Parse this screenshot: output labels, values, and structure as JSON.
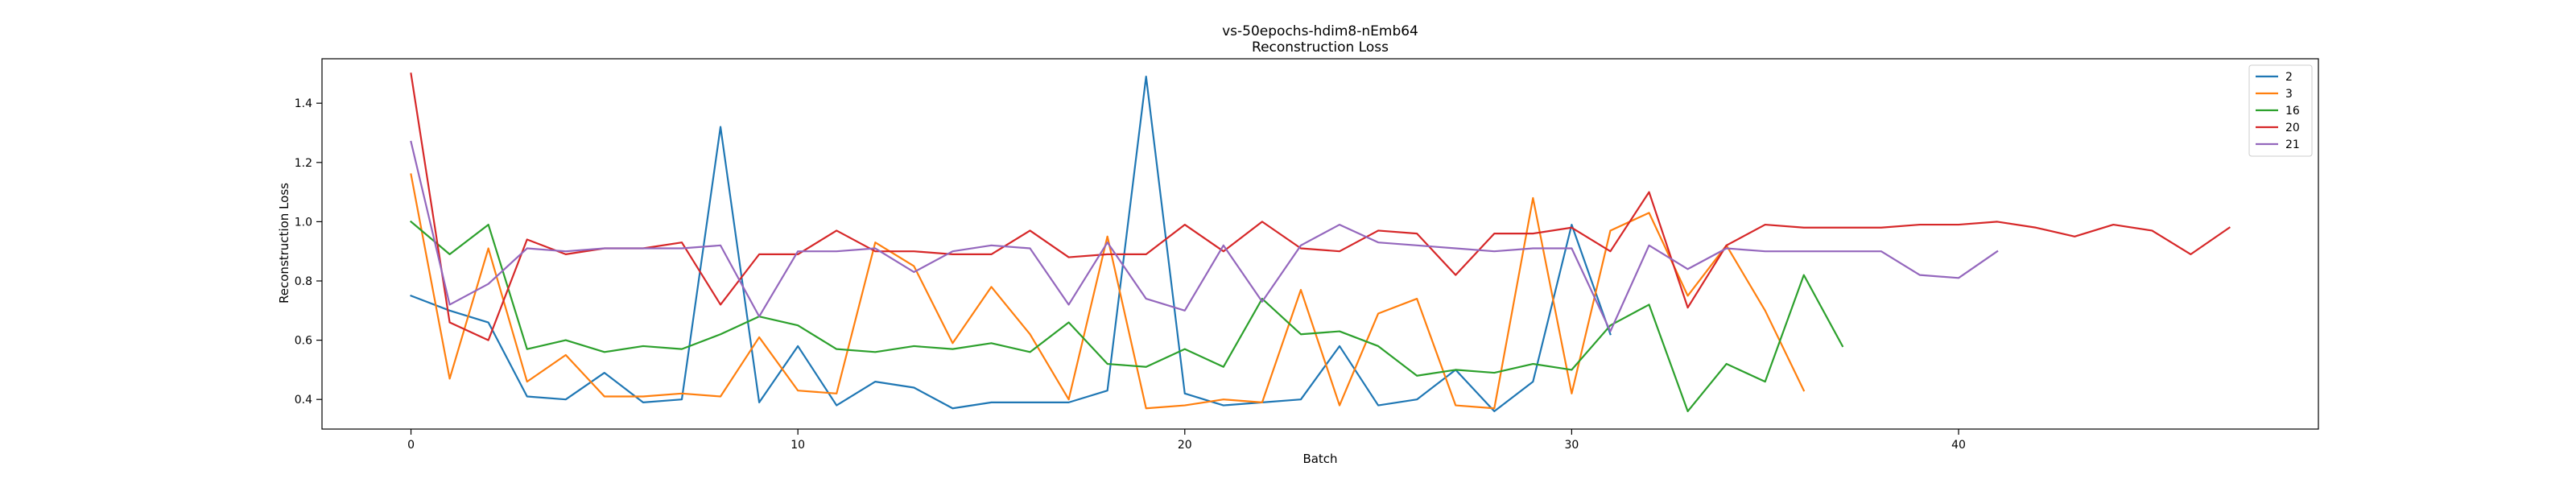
{
  "chart_data": {
    "type": "line",
    "title": "vs-50epochs-hdim8-nEmb64",
    "subtitle": "Reconstruction Loss",
    "xlabel": "Batch",
    "ylabel": "Reconstruction Loss",
    "xlim": [
      -2.3,
      49.3
    ],
    "ylim": [
      0.3,
      1.55
    ],
    "xticks": [
      0,
      10,
      20,
      30,
      40
    ],
    "yticks": [
      0.4,
      0.6,
      0.8,
      1.0,
      1.2,
      1.4
    ],
    "ytick_labels": [
      "0.4",
      "0.6",
      "0.8",
      "1.0",
      "1.2",
      "1.4"
    ],
    "grid": false,
    "legend_position": "top-right",
    "series": [
      {
        "name": "2",
        "color": "#1f77b4",
        "values": [
          0.75,
          0.7,
          0.66,
          0.41,
          0.4,
          0.49,
          0.39,
          0.4,
          1.32,
          0.39,
          0.58,
          0.38,
          0.46,
          0.44,
          0.37,
          0.39,
          0.39,
          0.39,
          0.43,
          1.49,
          0.42,
          0.38,
          0.39,
          0.4,
          0.58,
          0.38,
          0.4,
          0.5,
          0.36,
          0.46,
          0.99,
          0.62
        ]
      },
      {
        "name": "3",
        "color": "#ff7f0e",
        "values": [
          1.16,
          0.47,
          0.91,
          0.46,
          0.55,
          0.41,
          0.41,
          0.42,
          0.41,
          0.61,
          0.43,
          0.42,
          0.93,
          0.85,
          0.59,
          0.78,
          0.62,
          0.4,
          0.95,
          0.37,
          0.38,
          0.4,
          0.39,
          0.77,
          0.38,
          0.69,
          0.74,
          0.38,
          0.37,
          1.08,
          0.42,
          0.97,
          1.03,
          0.75,
          0.92,
          0.7,
          0.43
        ]
      },
      {
        "name": "16",
        "color": "#2ca02c",
        "values": [
          1.0,
          0.89,
          0.99,
          0.57,
          0.6,
          0.56,
          0.58,
          0.57,
          0.62,
          0.68,
          0.65,
          0.57,
          0.56,
          0.58,
          0.57,
          0.59,
          0.56,
          0.66,
          0.52,
          0.51,
          0.57,
          0.51,
          0.74,
          0.62,
          0.63,
          0.58,
          0.48,
          0.5,
          0.49,
          0.52,
          0.5,
          0.65,
          0.72,
          0.36,
          0.52,
          0.46,
          0.82,
          0.58
        ]
      },
      {
        "name": "20",
        "color": "#d62728",
        "values": [
          1.5,
          0.66,
          0.6,
          0.94,
          0.89,
          0.91,
          0.91,
          0.93,
          0.72,
          0.89,
          0.89,
          0.97,
          0.9,
          0.9,
          0.89,
          0.89,
          0.97,
          0.88,
          0.89,
          0.89,
          0.99,
          0.9,
          1.0,
          0.91,
          0.9,
          0.97,
          0.96,
          0.82,
          0.96,
          0.96,
          0.98,
          0.9,
          1.1,
          0.71,
          0.92,
          0.99,
          0.98,
          0.98,
          0.98,
          0.99,
          0.99,
          1.0,
          0.98,
          0.95,
          0.99,
          0.97,
          0.89,
          0.98
        ]
      },
      {
        "name": "21",
        "color": "#9467bd",
        "values": [
          1.27,
          0.72,
          0.79,
          0.91,
          0.9,
          0.91,
          0.91,
          0.91,
          0.92,
          0.68,
          0.9,
          0.9,
          0.91,
          0.83,
          0.9,
          0.92,
          0.91,
          0.72,
          0.93,
          0.74,
          0.7,
          0.92,
          0.73,
          0.92,
          0.99,
          0.93,
          0.92,
          0.91,
          0.9,
          0.91,
          0.91,
          0.63,
          0.92,
          0.84,
          0.91,
          0.9,
          0.9,
          0.9,
          0.9,
          0.82,
          0.81,
          0.9
        ]
      }
    ]
  }
}
